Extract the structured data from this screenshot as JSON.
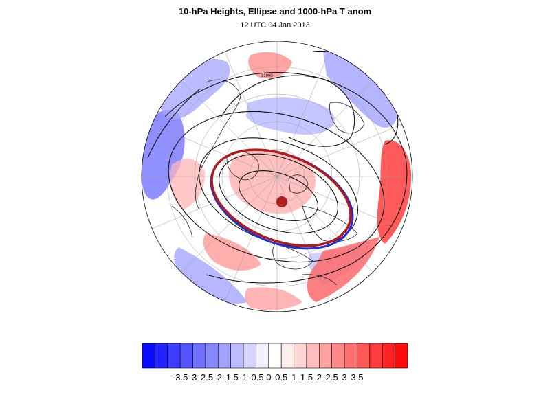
{
  "title": "10-hPa Heights, Ellipse and 1000-hPa T anom",
  "subtitle": "12 UTC 04 Jan 2013",
  "map": {
    "projection": "north-polar-stereographic",
    "contour_label": "31000",
    "colors": {
      "ellipse_outer": "#b01b1b",
      "ellipse_inner": "#1f2fd6",
      "center_marker": "#b01b1b",
      "contour": "#111111",
      "coast": "#222222",
      "grid": "#9a9a9a"
    }
  },
  "colorbar": {
    "colors": [
      "#0a0aff",
      "#2323ff",
      "#3d3dff",
      "#5656ff",
      "#7070ff",
      "#8989ff",
      "#a3a3ff",
      "#bcbcff",
      "#d6d6ff",
      "#efefff",
      "#ffffff",
      "#ffefef",
      "#ffd6d6",
      "#ffbcbc",
      "#ffa3a3",
      "#ff8989",
      "#ff7070",
      "#ff5656",
      "#ff3d3d",
      "#ff2323",
      "#ff0a0a"
    ],
    "labels": [
      "-3.5",
      "-3",
      "-2.5",
      "-2",
      "-1.5",
      "-1",
      "-0.5",
      "0",
      "0.5",
      "1",
      "1.5",
      "2",
      "2.5",
      "3",
      "3.5"
    ]
  }
}
